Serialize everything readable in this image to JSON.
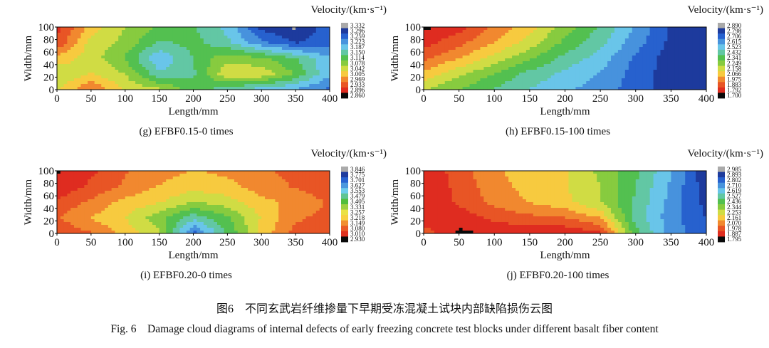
{
  "caption_cn": "图6　不同玄武岩纤维掺量下早期受冻混凝土试块内部缺陷损伤云图",
  "caption_en": "Fig. 6　Damage cloud diagrams of internal defects of early freezing concrete test blocks under different basalt fiber content",
  "chart_data": [
    {
      "type": "heatmap",
      "id": "g",
      "caption": "(g) EFBF0.15-0 times",
      "colorbar_title": "Velocity/(km·s⁻¹)",
      "xlabel": "Length/mm",
      "ylabel": "Width/mm",
      "xlim": [
        0,
        400
      ],
      "ylim": [
        0,
        100
      ],
      "xticks": [
        0,
        50,
        100,
        150,
        200,
        250,
        300,
        350,
        400
      ],
      "yticks": [
        0,
        20,
        40,
        60,
        80,
        100
      ],
      "legend_values": [
        "3.332",
        "3.296",
        "3.259",
        "3.223",
        "3.187",
        "3.150",
        "3.114",
        "3.078",
        "3.042",
        "3.005",
        "2.969",
        "2.933",
        "2.896",
        "2.860"
      ],
      "grid_x": [
        0,
        50,
        100,
        150,
        200,
        250,
        300,
        350,
        400
      ],
      "grid_y": [
        0,
        25,
        50,
        75,
        100
      ],
      "grid_values": [
        [
          3.03,
          2.95,
          3.03,
          3.05,
          3.12,
          3.15,
          3.19,
          3.21,
          3.25
        ],
        [
          3.06,
          3.02,
          3.06,
          3.16,
          3.14,
          3.03,
          3.03,
          3.1,
          3.2
        ],
        [
          3.0,
          3.04,
          3.1,
          3.2,
          3.13,
          3.07,
          3.09,
          3.13,
          3.2
        ],
        [
          2.92,
          3.04,
          3.07,
          3.14,
          3.12,
          3.16,
          3.23,
          3.28,
          3.26
        ],
        [
          2.9,
          3.0,
          3.06,
          3.1,
          3.13,
          3.18,
          3.29,
          3.32,
          3.25
        ]
      ]
    },
    {
      "type": "heatmap",
      "id": "h",
      "caption": "(h) EFBF0.15-100 times",
      "colorbar_title": "Velocity/(km·s⁻¹)",
      "xlabel": "Length/mm",
      "ylabel": "Width/mm",
      "xlim": [
        0,
        400
      ],
      "ylim": [
        0,
        100
      ],
      "xticks": [
        0,
        50,
        100,
        150,
        200,
        250,
        300,
        350,
        400
      ],
      "yticks": [
        0,
        20,
        40,
        60,
        80,
        100
      ],
      "legend_values": [
        "2.890",
        "2.798",
        "2.706",
        "2.615",
        "2.523",
        "2.432",
        "2.341",
        "2.249",
        "2.158",
        "2.066",
        "1.975",
        "1.883",
        "1.792",
        "1.700"
      ],
      "grid_x": [
        0,
        50,
        100,
        150,
        200,
        250,
        300,
        350,
        400
      ],
      "grid_y": [
        0,
        25,
        50,
        75,
        100
      ],
      "grid_values": [
        [
          2.2,
          2.3,
          2.4,
          2.48,
          2.55,
          2.62,
          2.7,
          2.8,
          2.84
        ],
        [
          2.05,
          2.18,
          2.3,
          2.42,
          2.5,
          2.58,
          2.7,
          2.8,
          2.84
        ],
        [
          1.9,
          2.02,
          2.15,
          2.28,
          2.42,
          2.52,
          2.68,
          2.8,
          2.84
        ],
        [
          1.8,
          1.9,
          2.02,
          2.15,
          2.32,
          2.45,
          2.62,
          2.78,
          2.84
        ],
        [
          1.72,
          1.8,
          1.95,
          2.08,
          2.25,
          2.4,
          2.58,
          2.76,
          2.84
        ]
      ]
    },
    {
      "type": "heatmap",
      "id": "i",
      "caption": "(i) EFBF0.20-0 times",
      "colorbar_title": "Velocity/(km·s⁻¹)",
      "xlabel": "Length/mm",
      "ylabel": "Width/mm",
      "xlim": [
        0,
        400
      ],
      "ylim": [
        0,
        100
      ],
      "xticks": [
        0,
        50,
        100,
        150,
        200,
        250,
        300,
        350,
        400
      ],
      "yticks": [
        0,
        20,
        40,
        60,
        80,
        100
      ],
      "legend_values": [
        "3.846",
        "3.775",
        "3.701",
        "3.627",
        "3.553",
        "3.479",
        "3.405",
        "3.331",
        "3.257",
        "3.218",
        "3.149",
        "3.080",
        "3.010",
        "2.930"
      ],
      "grid_x": [
        0,
        50,
        100,
        150,
        200,
        250,
        300,
        350,
        400
      ],
      "grid_y": [
        0,
        25,
        50,
        75,
        100
      ],
      "grid_values": [
        [
          3.05,
          3.1,
          3.2,
          3.3,
          3.7,
          3.45,
          3.22,
          3.08,
          3.05
        ],
        [
          3.1,
          3.18,
          3.25,
          3.36,
          3.5,
          3.4,
          3.24,
          3.12,
          3.08
        ],
        [
          3.05,
          3.12,
          3.2,
          3.24,
          3.32,
          3.28,
          3.2,
          3.15,
          3.1
        ],
        [
          2.98,
          3.05,
          3.12,
          3.18,
          3.22,
          3.2,
          3.14,
          3.1,
          3.06
        ],
        [
          2.96,
          3.02,
          3.1,
          3.15,
          3.18,
          3.16,
          3.12,
          3.08,
          3.04
        ]
      ]
    },
    {
      "type": "heatmap",
      "id": "j",
      "caption": "(j) EFBF0.20-100 times",
      "colorbar_title": "Velocity/(km·s⁻¹)",
      "xlabel": "Length/mm",
      "ylabel": "Width/mm",
      "xlim": [
        0,
        400
      ],
      "ylim": [
        0,
        100
      ],
      "xticks": [
        0,
        50,
        100,
        150,
        200,
        250,
        300,
        350,
        400
      ],
      "yticks": [
        0,
        20,
        40,
        60,
        80,
        100
      ],
      "legend_values": [
        "2.985",
        "2.893",
        "2.802",
        "2.710",
        "2.619",
        "2.527",
        "2.436",
        "2.344",
        "2.253",
        "2.161",
        "2.070",
        "1.978",
        "1.887",
        "1.795"
      ],
      "grid_x": [
        0,
        50,
        100,
        150,
        200,
        250,
        300,
        350,
        400
      ],
      "grid_y": [
        0,
        25,
        50,
        75,
        100
      ],
      "grid_values": [
        [
          1.98,
          1.82,
          1.85,
          1.86,
          1.86,
          1.9,
          2.45,
          2.7,
          2.82
        ],
        [
          1.88,
          1.88,
          1.96,
          2.0,
          2.02,
          2.12,
          2.52,
          2.72,
          2.85
        ],
        [
          1.85,
          1.95,
          2.05,
          2.12,
          2.18,
          2.3,
          2.5,
          2.7,
          2.88
        ],
        [
          1.85,
          1.96,
          2.08,
          2.15,
          2.2,
          2.3,
          2.48,
          2.68,
          2.9
        ],
        [
          1.85,
          1.98,
          2.1,
          2.16,
          2.2,
          2.32,
          2.46,
          2.66,
          2.92
        ]
      ]
    }
  ]
}
